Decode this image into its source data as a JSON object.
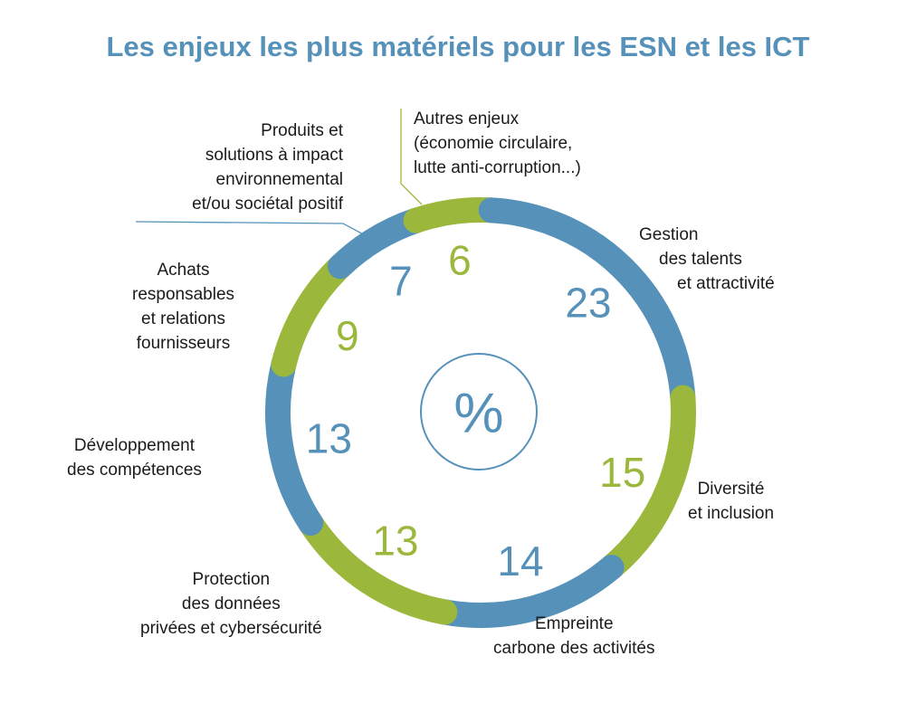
{
  "chart_data": {
    "type": "donut",
    "title": "Les enjeux les plus matériels pour les ESN et les ICT",
    "unit": "%",
    "start_angle": "top, slightly right",
    "direction": "clockwise",
    "colors": {
      "blue": "#5591b9",
      "green": "#9bb83c"
    },
    "segments": [
      {
        "value": 23,
        "value_label": "23",
        "label_lines": [
          "Gestion",
          "des talents",
          "et attractivité"
        ],
        "color": "#5591b9"
      },
      {
        "value": 15,
        "value_label": "15",
        "label_lines": [
          "Diversité",
          "et inclusion"
        ],
        "color": "#9bb83c"
      },
      {
        "value": 14,
        "value_label": "14",
        "label_lines": [
          "Empreinte",
          "carbone des activités"
        ],
        "color": "#5591b9"
      },
      {
        "value": 13,
        "value_label": "13",
        "label_lines": [
          "Protection",
          "des données",
          "privées et cybersécurité"
        ],
        "color": "#9bb83c"
      },
      {
        "value": 13,
        "value_label": "13",
        "label_lines": [
          "Développement",
          "des compétences"
        ],
        "color": "#5591b9"
      },
      {
        "value": 9,
        "value_label": "9",
        "label_lines": [
          "Achats",
          "responsables",
          "et relations",
          "fournisseurs"
        ],
        "color": "#9bb83c"
      },
      {
        "value": 7,
        "value_label": "7",
        "label_lines": [
          "Produits et",
          "solutions à impact",
          "environnemental",
          "et/ou sociétal positif"
        ],
        "color": "#5591b9"
      },
      {
        "value": 6,
        "value_label": "6",
        "label_lines": [
          "Autres enjeux",
          "(économie circulaire,",
          "lutte anti-corruption...)"
        ],
        "color": "#9bb83c"
      }
    ]
  }
}
